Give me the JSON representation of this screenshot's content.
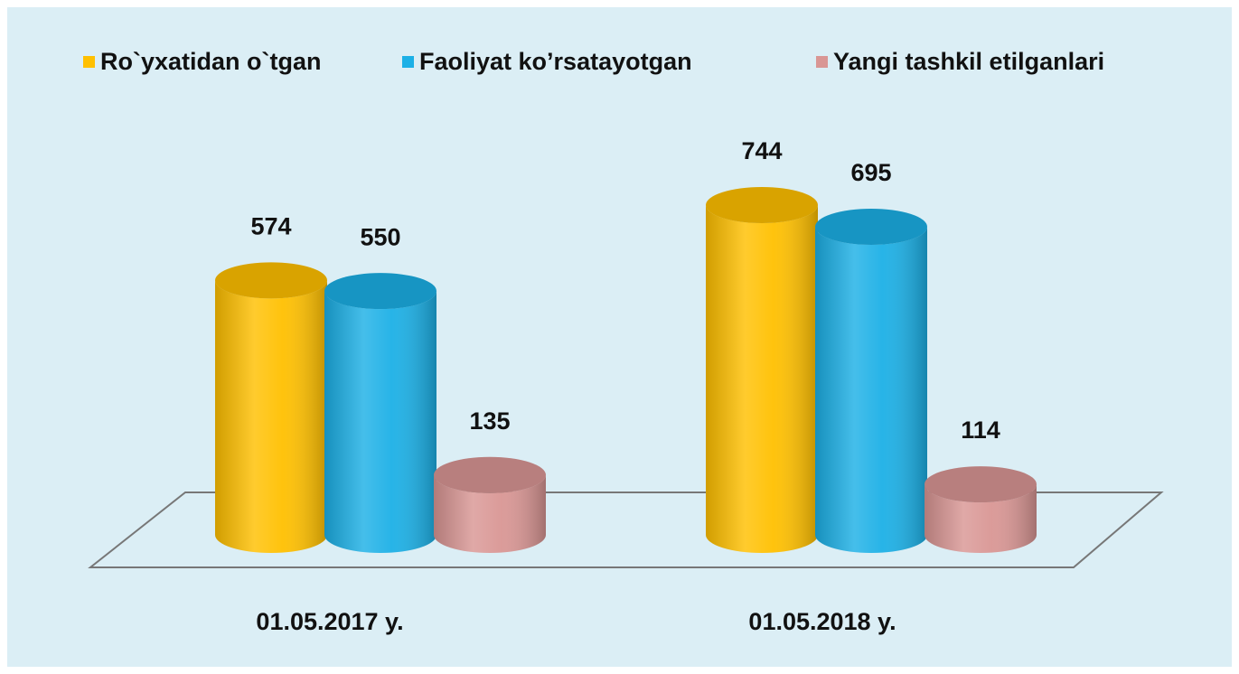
{
  "chart_data": {
    "type": "bar",
    "categories": [
      "01.05.2017 y.",
      "01.05.2018 y."
    ],
    "series": [
      {
        "name": "Ro`yxatidan o`tgan",
        "color": "#ffc000",
        "values": [
          574,
          744
        ]
      },
      {
        "name": "Faoliyat ko’rsatayotgan",
        "color": "#1cb0e6",
        "values": [
          550,
          695
        ]
      },
      {
        "name": "Yangi tashkil etilganlari",
        "color": "#d99694",
        "values": [
          135,
          114
        ]
      }
    ]
  }
}
